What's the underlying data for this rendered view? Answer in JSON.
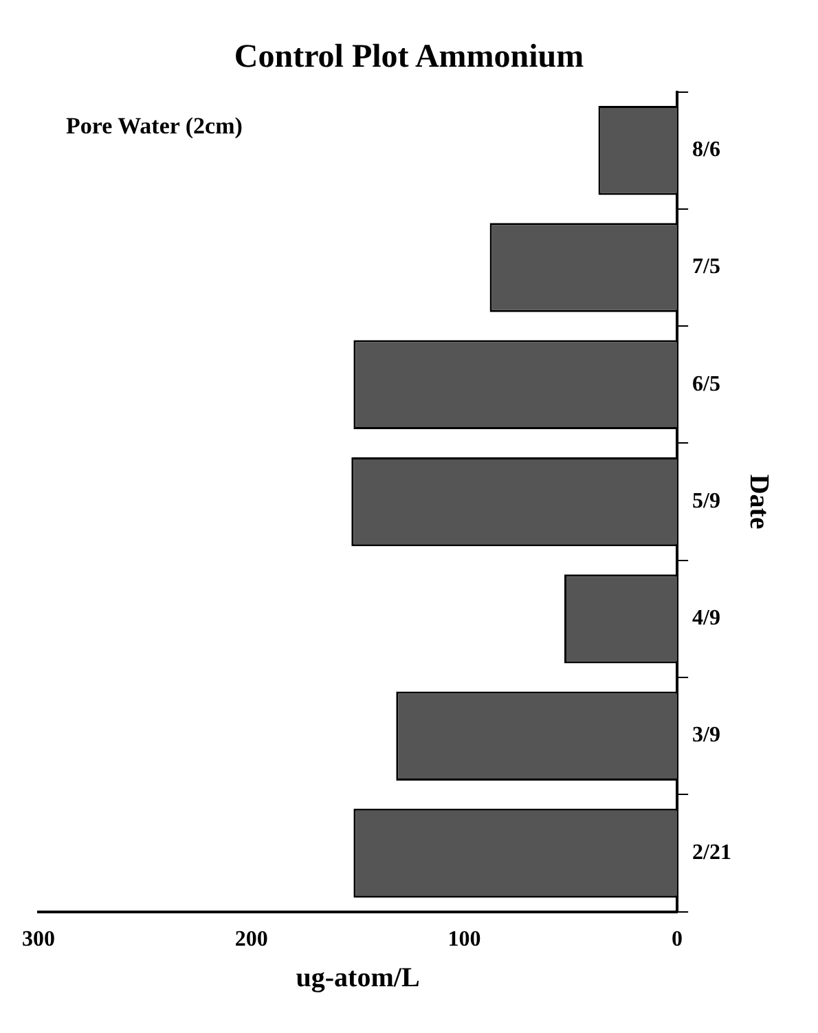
{
  "chart_data": {
    "type": "bar",
    "orientation": "horizontal",
    "title": "Control Plot Ammonium",
    "xlabel": "ug-atom/L",
    "ylabel": "Date",
    "annotations": [
      "Pore Water (2cm)"
    ],
    "categories": [
      "8/6",
      "7/5",
      "6/5",
      "5/9",
      "4/9",
      "3/9",
      "2/21"
    ],
    "values": [
      37,
      88,
      152,
      153,
      53,
      132,
      152
    ],
    "color": "#555555",
    "xlim": [
      300,
      0
    ],
    "xticks": [
      300,
      200,
      100,
      0
    ],
    "grid": false,
    "legend": false
  }
}
